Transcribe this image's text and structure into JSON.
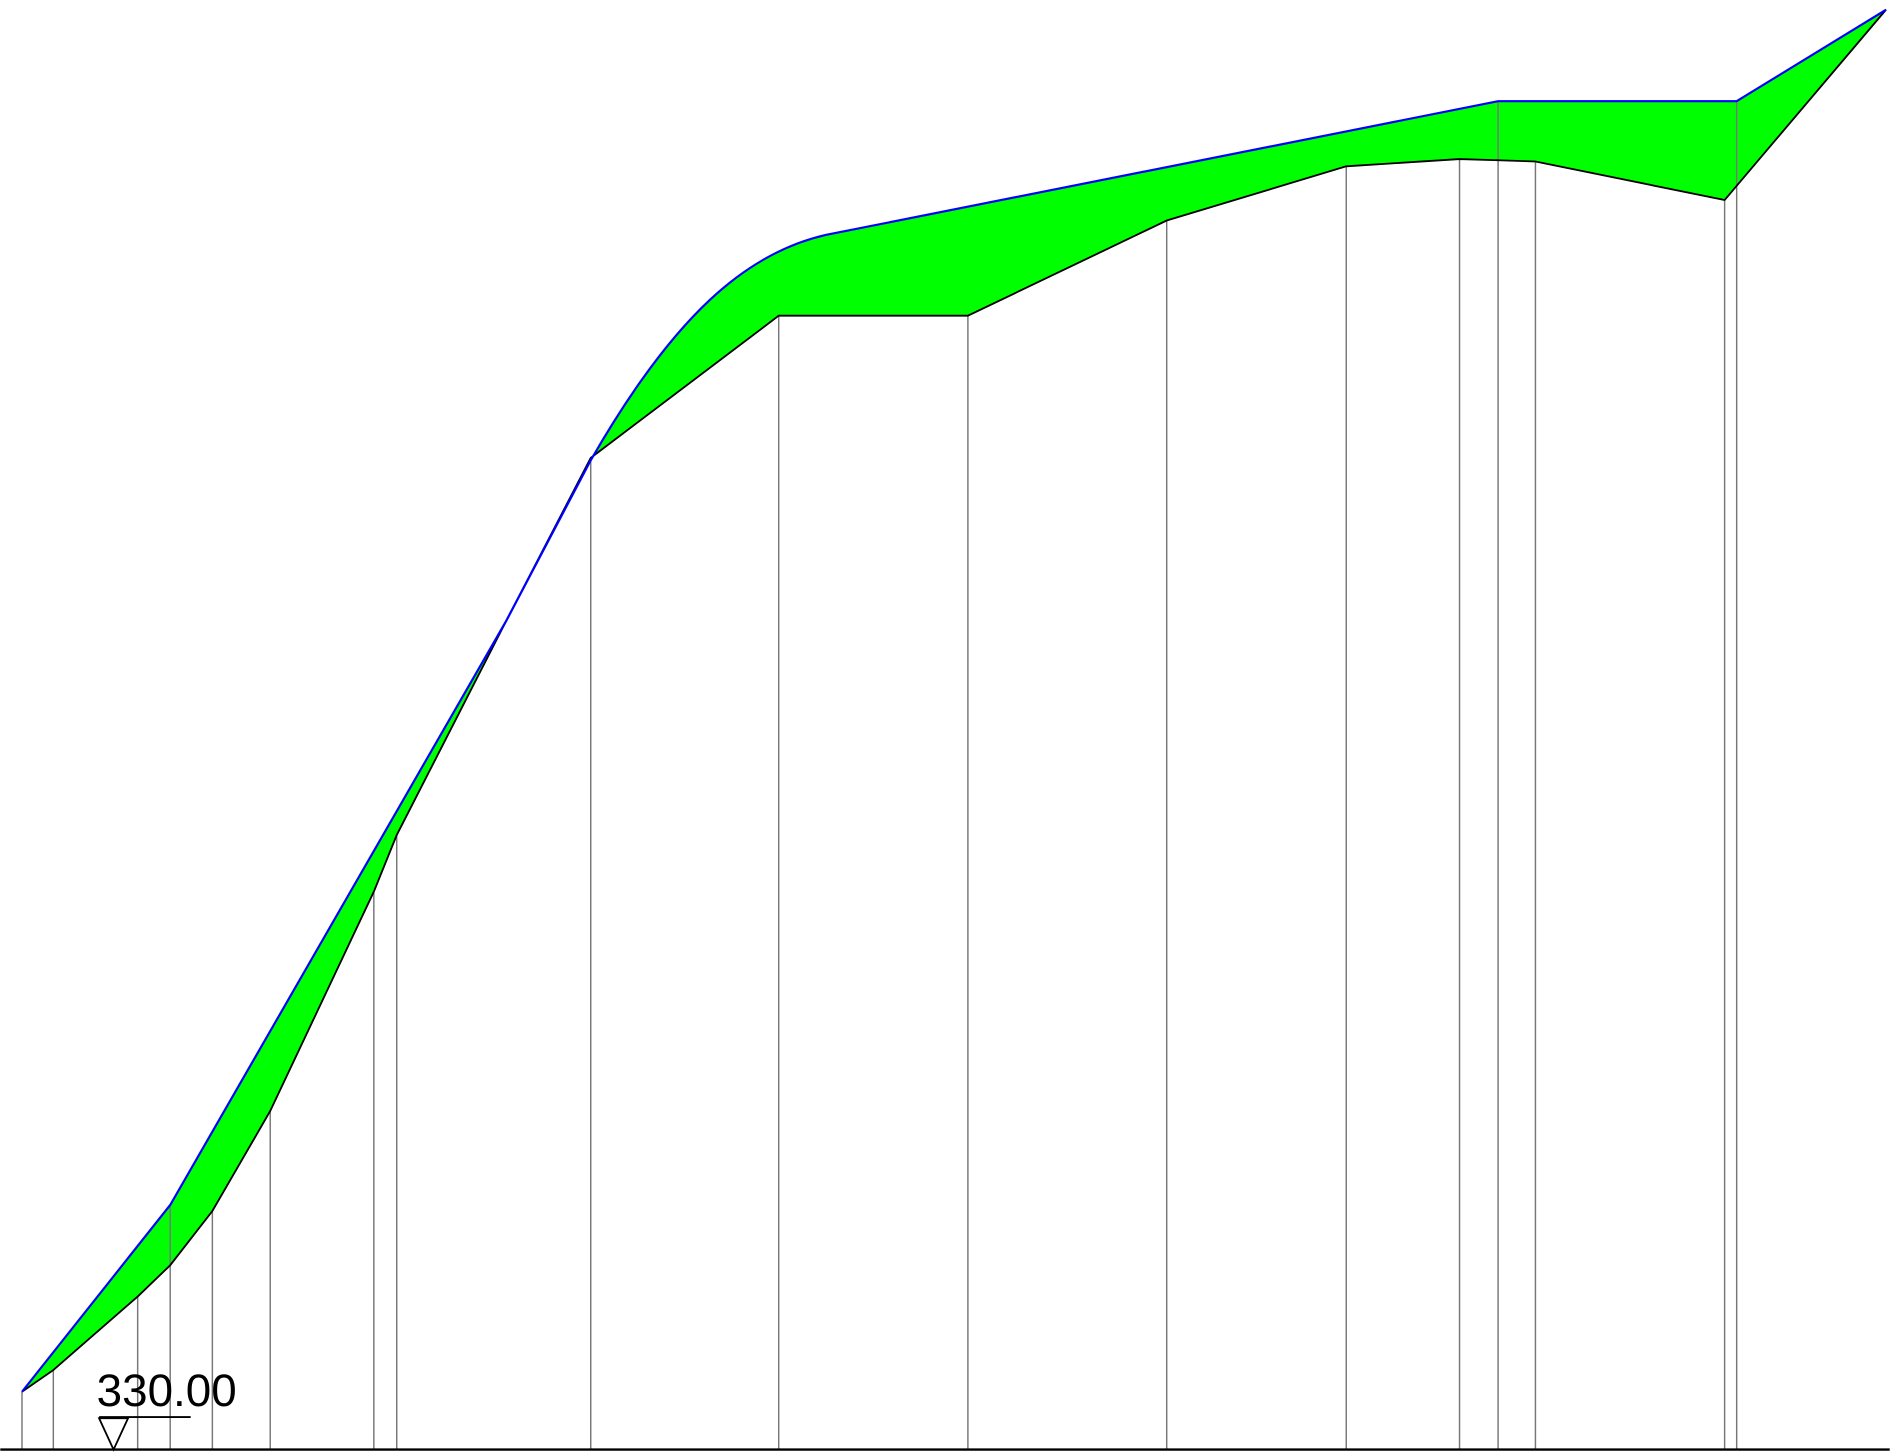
{
  "elevation_label": "330.00"
}
